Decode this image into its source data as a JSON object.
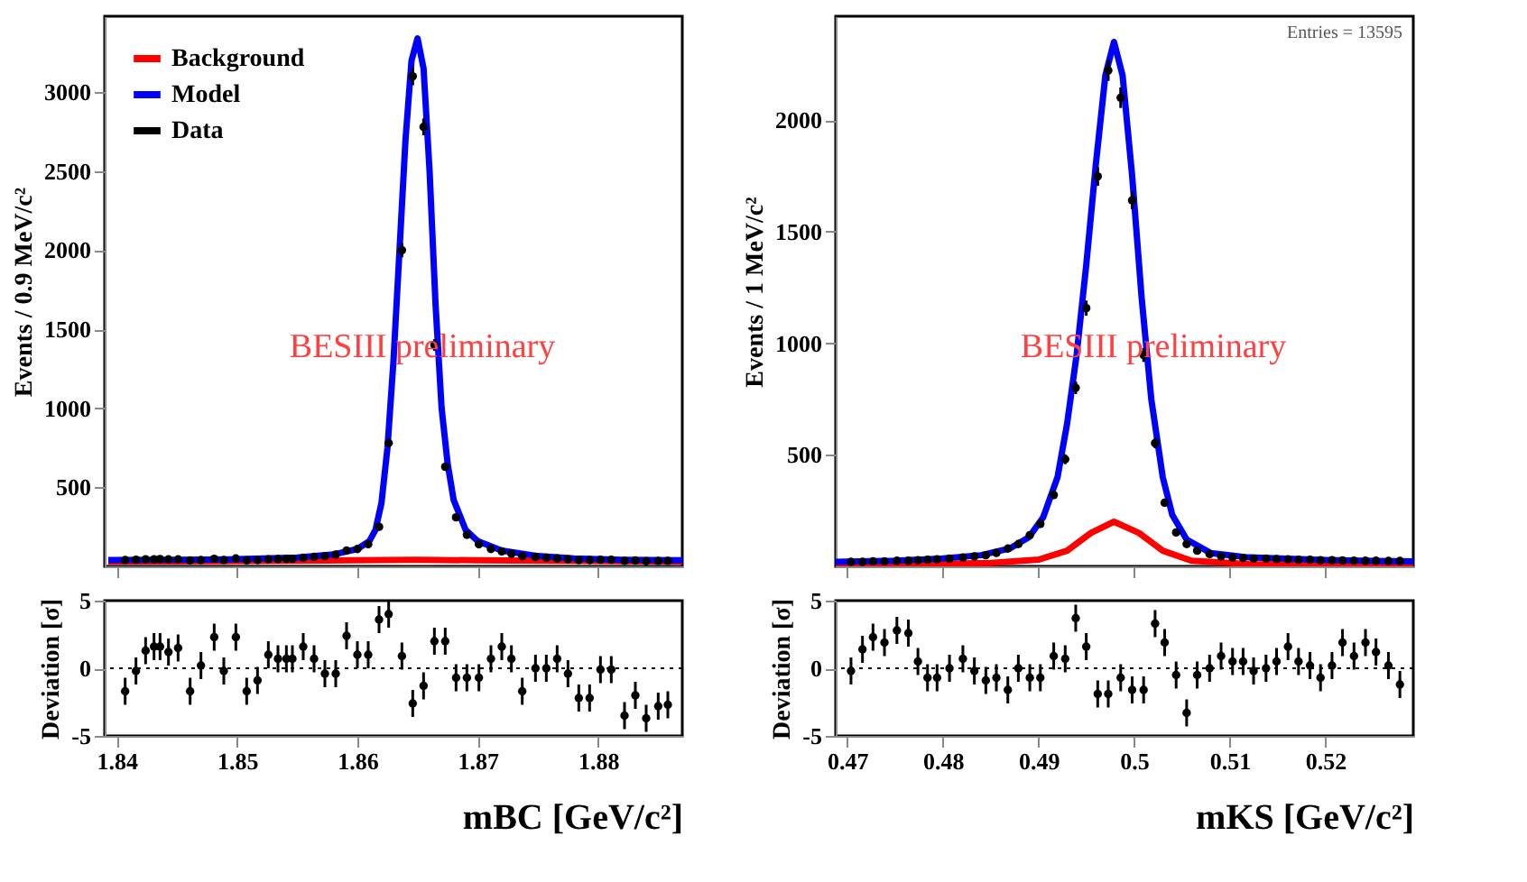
{
  "chart_data": [
    {
      "type": "scatter",
      "ylabel": "Events / 0.9 MeV/c²",
      "xlim": [
        1.839,
        1.887
      ],
      "ylim": [
        0,
        3480
      ],
      "xticks": [
        1.84,
        1.85,
        1.86,
        1.87,
        1.88
      ],
      "yticks": [
        500,
        1000,
        1500,
        2000,
        2500,
        3000
      ],
      "tick_labels": "y",
      "grid": false,
      "legend": false,
      "annotations": [
        "BESIII preliminary"
      ],
      "series": [
        {
          "type": "line",
          "color": "#ff0000",
          "x": [
            1.8393,
            1.855,
            1.862,
            1.865,
            1.87,
            1.887
          ],
          "values": [
            30,
            35,
            40,
            42,
            38,
            30
          ]
        },
        {
          "type": "line",
          "color": "#0000ff",
          "x": [
            1.8393,
            1.845,
            1.85,
            1.855,
            1.858,
            1.86,
            1.861,
            1.8615,
            1.862,
            1.8625,
            1.863,
            1.8635,
            1.864,
            1.8645,
            1.865,
            1.8655,
            1.866,
            1.8665,
            1.867,
            1.8675,
            1.868,
            1.869,
            1.87,
            1.872,
            1.875,
            1.878,
            1.882,
            1.887
          ],
          "values": [
            40,
            42,
            45,
            55,
            75,
            110,
            160,
            230,
            400,
            750,
            1300,
            2000,
            2700,
            3200,
            3340,
            3150,
            2500,
            1650,
            1000,
            650,
            420,
            230,
            160,
            100,
            65,
            50,
            42,
            38
          ]
        },
        {
          "type": "scatter",
          "marker": "circle",
          "color": "#000000",
          "x": [
            1.8407,
            1.8416,
            1.8424,
            1.8431,
            1.8436,
            1.8443,
            1.8451,
            1.8461,
            1.847,
            1.8481,
            1.8489,
            1.8499,
            1.8508,
            1.8517,
            1.8526,
            1.8534,
            1.8541,
            1.8546,
            1.8555,
            1.8564,
            1.8573,
            1.8582,
            1.8591,
            1.86,
            1.8609,
            1.8618,
            1.8626,
            1.8637,
            1.8646,
            1.8655,
            1.8664,
            1.8673,
            1.8682,
            1.8691,
            1.8701,
            1.8711,
            1.872,
            1.8728,
            1.8737,
            1.8748,
            1.8757,
            1.8766,
            1.8775,
            1.8784,
            1.8793,
            1.8802,
            1.8811,
            1.8822,
            1.8831,
            1.884,
            1.885,
            1.8858
          ],
          "values": [
            40,
            42,
            45,
            45,
            46,
            44,
            44,
            38,
            40,
            48,
            40,
            50,
            38,
            40,
            45,
            46,
            47,
            48,
            55,
            60,
            65,
            75,
            100,
            110,
            140,
            250,
            780,
            2000,
            3100,
            2780,
            1400,
            630,
            310,
            200,
            140,
            110,
            95,
            80,
            65,
            60,
            55,
            50,
            45,
            40,
            40,
            42,
            42,
            35,
            38,
            33,
            35,
            35
          ],
          "errors": [
            6,
            6,
            7,
            7,
            7,
            7,
            7,
            6,
            6,
            7,
            6,
            7,
            6,
            6,
            7,
            7,
            7,
            7,
            7,
            8,
            8,
            9,
            10,
            10,
            12,
            16,
            28,
            45,
            56,
            53,
            37,
            25,
            18,
            14,
            12,
            10,
            10,
            9,
            8,
            8,
            7,
            7,
            7,
            6,
            6,
            6,
            6,
            6,
            6,
            6,
            6,
            6
          ]
        }
      ]
    },
    {
      "type": "scatter",
      "xlabel": "mBC [GeV/c²]",
      "ylabel": "Deviation [σ]",
      "xlim": [
        1.839,
        1.887
      ],
      "ylim": [
        -5,
        5
      ],
      "xticks": [
        1.84,
        1.85,
        1.86,
        1.87,
        1.88
      ],
      "yticks": [
        -5,
        0,
        5
      ],
      "grid": false,
      "legend": false,
      "marker": "circle",
      "ref_lines": [
        {
          "axis": "y",
          "value": 0,
          "line_style": "dotted",
          "color": "#000000"
        }
      ],
      "series": [
        {
          "color": "#000000",
          "x": [
            1.8407,
            1.8416,
            1.8424,
            1.8431,
            1.8436,
            1.8443,
            1.8451,
            1.8461,
            1.847,
            1.8481,
            1.8489,
            1.8499,
            1.8508,
            1.8517,
            1.8526,
            1.8534,
            1.8541,
            1.8546,
            1.8555,
            1.8564,
            1.8573,
            1.8582,
            1.8591,
            1.86,
            1.8609,
            1.8618,
            1.8626,
            1.8637,
            1.8646,
            1.8655,
            1.8664,
            1.8673,
            1.8682,
            1.8691,
            1.8701,
            1.8711,
            1.872,
            1.8728,
            1.8737,
            1.8748,
            1.8757,
            1.8766,
            1.8775,
            1.8784,
            1.8793,
            1.8802,
            1.8811,
            1.8822,
            1.8831,
            1.884,
            1.885,
            1.8858
          ],
          "values": [
            -1.7,
            -0.2,
            1.3,
            1.6,
            1.6,
            1.2,
            1.5,
            -1.7,
            0.2,
            2.3,
            -0.2,
            2.3,
            -1.7,
            -0.9,
            1.0,
            0.7,
            0.7,
            0.7,
            1.6,
            0.7,
            -0.4,
            -0.4,
            2.4,
            1.0,
            1.0,
            3.6,
            4.0,
            0.9,
            -2.6,
            -1.3,
            2.0,
            2.0,
            -0.7,
            -0.7,
            -0.7,
            0.7,
            1.6,
            0.7,
            -1.7,
            0,
            0,
            0.7,
            -0.4,
            -2.2,
            -2.2,
            -0.1,
            -0.1,
            -3.5,
            -2.0,
            -3.7,
            -2.8,
            -2.7
          ],
          "errors": [
            1,
            1,
            1,
            1,
            1,
            1,
            1,
            1,
            1,
            1,
            1,
            1,
            1,
            1,
            1,
            1,
            1,
            1,
            1,
            1,
            1,
            1,
            1,
            1,
            1,
            1,
            1,
            1,
            1,
            1,
            1,
            1,
            1,
            1,
            1,
            1,
            1,
            1,
            1,
            1,
            1,
            1,
            1,
            1,
            1,
            1,
            1,
            1,
            1,
            1,
            1,
            1
          ]
        }
      ]
    },
    {
      "type": "scatter",
      "ylabel": "Events / 1 MeV/c²",
      "xlim": [
        0.4688,
        0.5292
      ],
      "ylim": [
        0,
        2465
      ],
      "xticks": [
        0.47,
        0.48,
        0.49,
        0.5,
        0.51,
        0.52
      ],
      "yticks": [
        500,
        1000,
        1500,
        2000
      ],
      "tick_labels": "y",
      "grid": false,
      "legend": "top left",
      "annotations": [
        "BESIII preliminary",
        "Entries = 13595"
      ],
      "series": [
        {
          "type": "line",
          "name": "Background",
          "color": "#ff0000",
          "x": [
            0.4688,
            0.485,
            0.49,
            0.493,
            0.4955,
            0.4979,
            0.5005,
            0.503,
            0.506,
            0.512,
            0.5292
          ],
          "values": [
            5,
            15,
            30,
            70,
            150,
            200,
            150,
            70,
            25,
            10,
            5
          ]
        },
        {
          "type": "line",
          "name": "Model",
          "color": "#0000ff",
          "x": [
            0.4688,
            0.475,
            0.48,
            0.484,
            0.487,
            0.489,
            0.4905,
            0.492,
            0.493,
            0.494,
            0.495,
            0.496,
            0.497,
            0.4979,
            0.4988,
            0.4998,
            0.5008,
            0.5018,
            0.503,
            0.504,
            0.5055,
            0.508,
            0.512,
            0.52,
            0.5292
          ],
          "values": [
            20,
            25,
            35,
            50,
            80,
            130,
            220,
            400,
            640,
            950,
            1350,
            1800,
            2200,
            2350,
            2200,
            1750,
            1200,
            750,
            400,
            230,
            120,
            60,
            40,
            28,
            22
          ]
        },
        {
          "type": "scatter",
          "name": "Data",
          "marker": "circle",
          "color": "#000000",
          "x": [
            0.4704,
            0.4716,
            0.4727,
            0.4739,
            0.4752,
            0.4764,
            0.4774,
            0.4784,
            0.4794,
            0.4807,
            0.4821,
            0.4833,
            0.4845,
            0.4856,
            0.4868,
            0.4879,
            0.4891,
            0.4902,
            0.4916,
            0.4928,
            0.4939,
            0.495,
            0.4962,
            0.4973,
            0.4986,
            0.4998,
            0.501,
            0.5022,
            0.5032,
            0.5044,
            0.5055,
            0.5066,
            0.5079,
            0.5091,
            0.5103,
            0.5114,
            0.5125,
            0.5138,
            0.5149,
            0.5161,
            0.5172,
            0.5184,
            0.5195,
            0.5207,
            0.5218,
            0.523,
            0.5242,
            0.5253,
            0.5266,
            0.5278
          ],
          "values": [
            20,
            20,
            22,
            22,
            25,
            25,
            28,
            30,
            32,
            35,
            40,
            45,
            50,
            60,
            80,
            100,
            140,
            190,
            320,
            480,
            800,
            1157,
            1747,
            2222,
            2100,
            1640,
            947,
            552,
            285,
            152,
            100,
            70,
            55,
            45,
            40,
            38,
            35,
            35,
            33,
            32,
            30,
            30,
            28,
            28,
            27,
            26,
            25,
            25,
            24,
            24
          ],
          "errors": [
            4,
            4,
            5,
            5,
            5,
            5,
            5,
            5,
            6,
            6,
            6,
            7,
            7,
            8,
            9,
            10,
            12,
            14,
            18,
            22,
            28,
            34,
            42,
            47,
            46,
            40,
            31,
            23,
            17,
            12,
            10,
            8,
            7,
            7,
            6,
            6,
            6,
            6,
            6,
            6,
            5,
            5,
            5,
            5,
            5,
            5,
            5,
            5,
            5,
            5
          ]
        }
      ]
    },
    {
      "type": "scatter",
      "xlabel": "mKS [GeV/c²]",
      "ylabel": "Deviation [σ]",
      "xlim": [
        0.4688,
        0.5292
      ],
      "ylim": [
        -5,
        5
      ],
      "xticks": [
        0.47,
        0.48,
        0.49,
        0.5,
        0.51,
        0.52
      ],
      "yticks": [
        -5,
        0,
        5
      ],
      "grid": false,
      "legend": false,
      "marker": "circle",
      "ref_lines": [
        {
          "axis": "y",
          "value": 0,
          "line_style": "dotted",
          "color": "#000000"
        }
      ],
      "series": [
        {
          "color": "#000000",
          "x": [
            0.4704,
            0.4716,
            0.4727,
            0.4739,
            0.4752,
            0.4764,
            0.4774,
            0.4784,
            0.4794,
            0.4807,
            0.4821,
            0.4833,
            0.4845,
            0.4856,
            0.4868,
            0.4879,
            0.4891,
            0.4902,
            0.4916,
            0.4928,
            0.4939,
            0.495,
            0.4962,
            0.4973,
            0.4986,
            0.4998,
            0.501,
            0.5022,
            0.5032,
            0.5044,
            0.5055,
            0.5066,
            0.5079,
            0.5091,
            0.5103,
            0.5114,
            0.5125,
            0.5138,
            0.5149,
            0.5161,
            0.5172,
            0.5184,
            0.5195,
            0.5207,
            0.5218,
            0.523,
            0.5242,
            0.5253,
            0.5266,
            0.5278
          ],
          "values": [
            -0.2,
            1.4,
            2.3,
            1.9,
            2.8,
            2.6,
            0.5,
            -0.7,
            -0.7,
            0,
            0.7,
            -0.2,
            -0.9,
            -0.7,
            -1.6,
            0,
            -0.7,
            -0.7,
            0.9,
            0.7,
            3.7,
            1.6,
            -1.9,
            -1.9,
            -0.7,
            -1.6,
            -1.6,
            3.3,
            1.9,
            -0.5,
            -3.3,
            -0.5,
            0,
            0.9,
            0.5,
            0.5,
            -0.2,
            0,
            0.5,
            1.6,
            0.5,
            0.2,
            -0.7,
            0.2,
            1.9,
            0.9,
            1.9,
            1.2,
            0.2,
            -1.2
          ],
          "errors": [
            1,
            1,
            1,
            1,
            1,
            1,
            1,
            1,
            1,
            1,
            1,
            1,
            1,
            1,
            1,
            1,
            1,
            1,
            1,
            1,
            1,
            1,
            1,
            1,
            1,
            1,
            1,
            1,
            1,
            1,
            1,
            1,
            1,
            1,
            1,
            1,
            1,
            1,
            1,
            1,
            1,
            1,
            1,
            1,
            1,
            1,
            1,
            1,
            1,
            1
          ]
        }
      ]
    }
  ]
}
